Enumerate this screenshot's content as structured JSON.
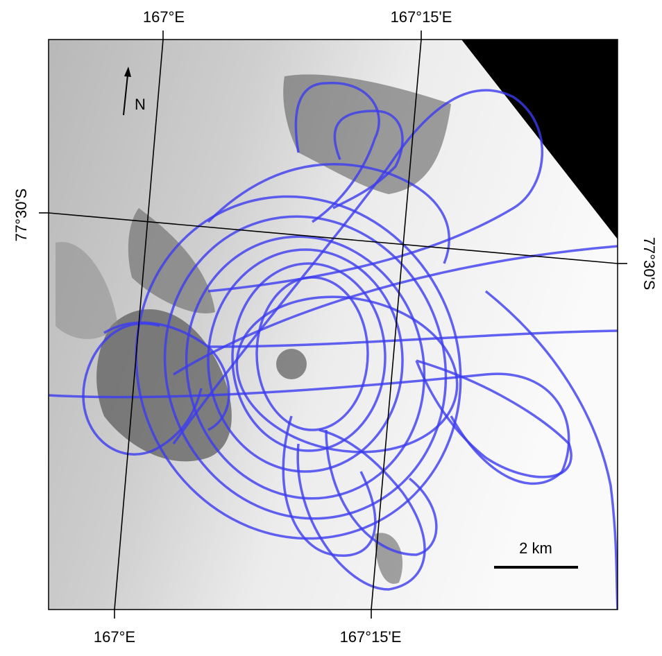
{
  "graticule": {
    "top": [
      "167°E",
      "167°15'E"
    ],
    "bottom": [
      "167°E",
      "167°15'E"
    ],
    "left": "77°30'S",
    "right": "77°30'S"
  },
  "north_arrow": "N",
  "scale_bar": "2 km"
}
